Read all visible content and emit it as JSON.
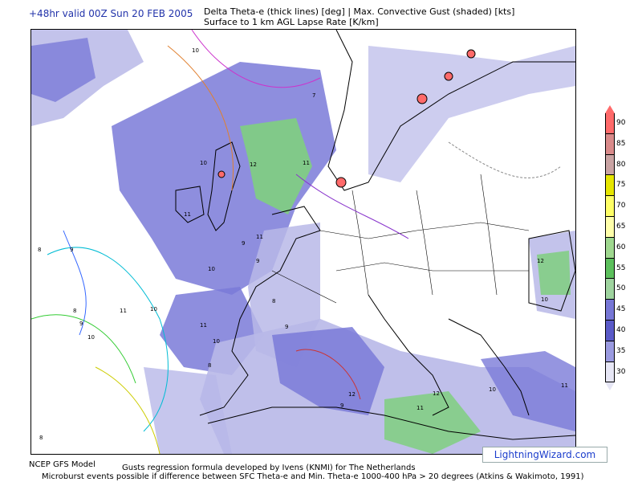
{
  "header": {
    "valid_time": "+48hr valid 00Z Sun 20 FEB 2005",
    "title_line1": "Delta Theta-e (thick lines) [deg]  |  Max. Convective Gust (shaded) [kts]",
    "title_line2": "Surface to 1 km AGL Lapse Rate [K/km]"
  },
  "legend": {
    "unit_note": "",
    "levels": [
      "90",
      "85",
      "80",
      "75",
      "70",
      "65",
      "60",
      "55",
      "50",
      "45",
      "40",
      "35",
      "30"
    ],
    "colors": [
      "#ff6a6a",
      "#d98a8a",
      "#c9a3a3",
      "#e6e600",
      "#ffff66",
      "#ffffaa",
      "#9fd88f",
      "#5cc05c",
      "#9fd49f",
      "#7777d6",
      "#5a5ac8",
      "#9a9ae0",
      "#e6e6f5"
    ]
  },
  "map": {
    "shading_colors": {
      "g30_35": "#b8b8e8",
      "g35_40": "#7a7ad8",
      "g40_45": "#5656c4",
      "g50_55": "#7fcf7f",
      "g60_65": "#ffff99"
    },
    "labels": [
      "10",
      "10",
      "11",
      "12",
      "8",
      "9",
      "7",
      "11",
      "10",
      "8",
      "9",
      "11",
      "10",
      "11",
      "12",
      "8",
      "9",
      "10",
      "11",
      "10",
      "9",
      "11",
      "12",
      "8",
      "10",
      "9",
      "11",
      "12",
      "10",
      "9",
      "8"
    ]
  },
  "branding": {
    "text": "LightningWizard.com"
  },
  "footer": {
    "model": "NCEP GFS Model",
    "gust_note": "Gusts regression formula developed by Ivens (KNMI) for The Netherlands",
    "microburst_note": "Microburst events possible if difference between SFC Theta-e and Min. Theta-e 1000-400 hPa > 20 degrees (Atkins & Wakimoto, 1991)"
  }
}
